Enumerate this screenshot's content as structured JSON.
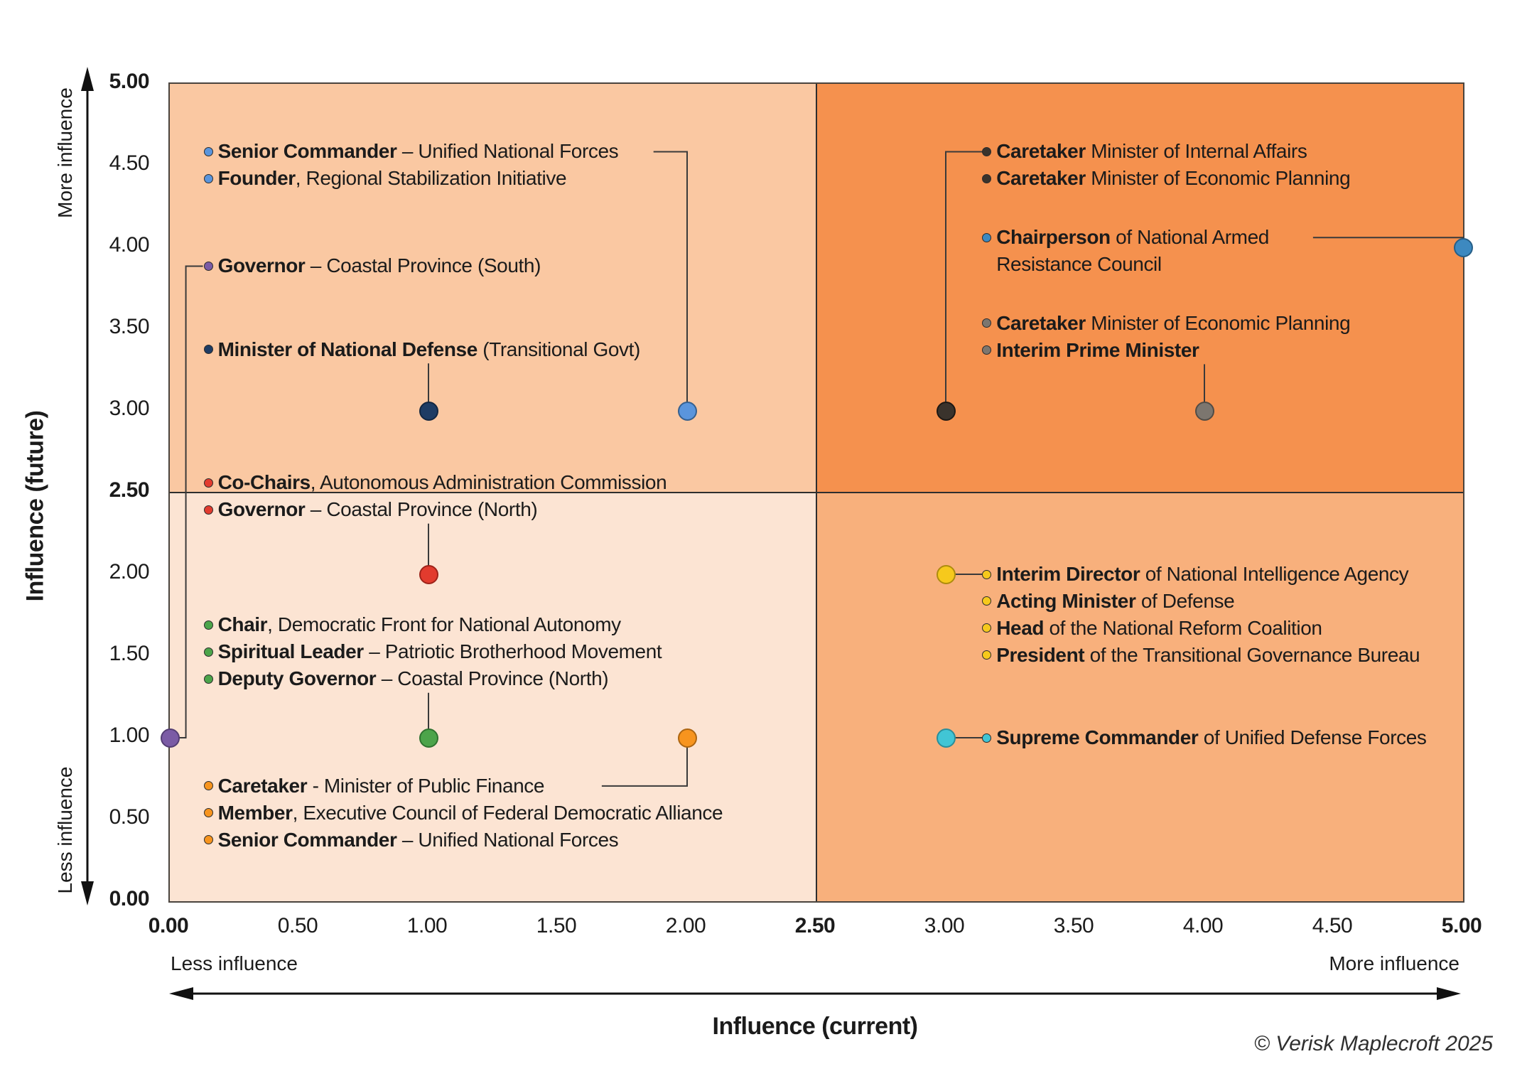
{
  "figure": {
    "x_axis_title": "Influence (current)",
    "y_axis_title": "Influence (future)",
    "x_less_label": "Less influence",
    "x_more_label": "More influence",
    "y_less_label": "Less influence",
    "y_more_label": "More influence",
    "copyright": "© Verisk Maplecroft 2025"
  },
  "chart_data": {
    "type": "scatter",
    "xlabel": "Influence (current)",
    "ylabel": "Influence (future)",
    "xlim": [
      0,
      5
    ],
    "ylim": [
      0,
      5
    ],
    "grid": false,
    "quadrant_split": {
      "x": 2.5,
      "y": 2.5
    },
    "quadrant_colors": {
      "top_left": "#FAC8A2",
      "top_right": "#F5914E",
      "bottom_left": "#FCE4D3",
      "bottom_right": "#F8B07C"
    },
    "x_ticks": [
      {
        "v": 0.0,
        "label": "0.00",
        "bold": true
      },
      {
        "v": 0.5,
        "label": "0.50",
        "bold": false
      },
      {
        "v": 1.0,
        "label": "1.00",
        "bold": false
      },
      {
        "v": 1.5,
        "label": "1.50",
        "bold": false
      },
      {
        "v": 2.0,
        "label": "2.00",
        "bold": false
      },
      {
        "v": 2.5,
        "label": "2.50",
        "bold": true
      },
      {
        "v": 3.0,
        "label": "3.00",
        "bold": false
      },
      {
        "v": 3.5,
        "label": "3.50",
        "bold": false
      },
      {
        "v": 4.0,
        "label": "4.00",
        "bold": false
      },
      {
        "v": 4.5,
        "label": "4.50",
        "bold": false
      },
      {
        "v": 5.0,
        "label": "5.00",
        "bold": true
      }
    ],
    "y_ticks": [
      {
        "v": 5.0,
        "label": "5.00",
        "bold": true
      },
      {
        "v": 4.5,
        "label": "4.50",
        "bold": false
      },
      {
        "v": 4.0,
        "label": "4.00",
        "bold": false
      },
      {
        "v": 3.5,
        "label": "3.50",
        "bold": false
      },
      {
        "v": 3.0,
        "label": "3.00",
        "bold": false
      },
      {
        "v": 2.5,
        "label": "2.50",
        "bold": true
      },
      {
        "v": 2.0,
        "label": "2.00",
        "bold": false
      },
      {
        "v": 1.5,
        "label": "1.50",
        "bold": false
      },
      {
        "v": 1.0,
        "label": "1.00",
        "bold": false
      },
      {
        "v": 0.5,
        "label": "0.50",
        "bold": false
      },
      {
        "v": 0.0,
        "label": "0.00",
        "bold": true
      }
    ],
    "points": [
      {
        "name": "senior-commander-founder-point",
        "x": 2,
        "y": 3,
        "color": "#5A95DC",
        "border": "#35608F"
      },
      {
        "name": "governor-south-point",
        "x": 0,
        "y": 1,
        "color": "#7B5BA5",
        "border": "#543E74"
      },
      {
        "name": "minister-national-defense-point",
        "x": 1,
        "y": 3,
        "color": "#1E3C64",
        "border": "#132741"
      },
      {
        "name": "co-chairs-governor-north-point",
        "x": 1,
        "y": 2,
        "color": "#E23B2E",
        "border": "#9E231A"
      },
      {
        "name": "chair-spiritual-deputy-point",
        "x": 1,
        "y": 1,
        "color": "#4CA44A",
        "border": "#2F7330"
      },
      {
        "name": "caretaker-finance-member-commander-point",
        "x": 2,
        "y": 1,
        "color": "#F7941E",
        "border": "#AD6612"
      },
      {
        "name": "caretaker-internal-economic-point",
        "x": 3,
        "y": 3,
        "color": "#3A332C",
        "border": "#1D1814"
      },
      {
        "name": "caretaker-economic-interim-pm-point",
        "x": 4,
        "y": 3,
        "color": "#7C766F",
        "border": "#514C46"
      },
      {
        "name": "chairperson-resistance-council-point",
        "x": 5,
        "y": 4,
        "color": "#3D89C0",
        "border": "#275F87"
      },
      {
        "name": "interim-director-cluster-point",
        "x": 3,
        "y": 2,
        "color": "#F6C91C",
        "border": "#AD8C0E"
      },
      {
        "name": "supreme-commander-point",
        "x": 3,
        "y": 1,
        "color": "#41C5D5",
        "border": "#2B8D99"
      }
    ],
    "label_groups": [
      {
        "id": "senior-commander-founder",
        "color": "#5A95DC",
        "bullet_x": 0.15,
        "lines": [
          {
            "y": 4.585,
            "bold": "Senior Commander",
            "rest": " – Unified National Forces"
          },
          {
            "y": 4.42,
            "bold": "Founder",
            "rest": ", Regional Stabilization Initiative"
          }
        ],
        "connector": [
          [
            1.87,
            4.585
          ],
          [
            2.0,
            4.585
          ],
          [
            2.0,
            3.0
          ]
        ]
      },
      {
        "id": "governor-south",
        "color": "#7B5BA5",
        "bullet_x": 0.15,
        "lines": [
          {
            "y": 3.885,
            "bold": "Governor",
            "rest": " – Coastal Province (South)"
          }
        ],
        "connector": [
          [
            0.128,
            3.885
          ],
          [
            0.062,
            3.885
          ],
          [
            0.062,
            1.0
          ],
          [
            0.0,
            1.0
          ]
        ]
      },
      {
        "id": "minister-national-defense",
        "color": "#1E3C64",
        "bullet_x": 0.15,
        "lines": [
          {
            "y": 3.375,
            "bold": "Minister of National Defense",
            "rest": " (Transitional Govt)"
          }
        ],
        "connector": [
          [
            1.0,
            3.29
          ],
          [
            1.0,
            3.0
          ]
        ]
      },
      {
        "id": "co-chairs-governor-north",
        "color": "#E23B2E",
        "bullet_x": 0.15,
        "lines": [
          {
            "y": 2.56,
            "bold": "Co-Chairs",
            "rest": ", Autonomous Administration Commission"
          },
          {
            "y": 2.395,
            "bold": "Governor",
            "rest": " – Coastal Province (North)"
          }
        ],
        "connector": [
          [
            1.0,
            2.31
          ],
          [
            1.0,
            2.0
          ]
        ]
      },
      {
        "id": "chair-spiritual-deputy",
        "color": "#4CA44A",
        "bullet_x": 0.15,
        "lines": [
          {
            "y": 1.69,
            "bold": "Chair",
            "rest": ", Democratic Front for National Autonomy"
          },
          {
            "y": 1.525,
            "bold": "Spiritual Leader",
            "rest": " – Patriotic Brotherhood Movement"
          },
          {
            "y": 1.36,
            "bold": "Deputy Governor",
            "rest": " – Coastal Province (North)"
          }
        ],
        "connector": [
          [
            1.0,
            1.275
          ],
          [
            1.0,
            1.0
          ]
        ]
      },
      {
        "id": "caretaker-finance-member-commander",
        "color": "#F7941E",
        "bullet_x": 0.15,
        "lines": [
          {
            "y": 0.705,
            "bold": "Caretaker",
            "rest": " - Minister of Public Finance"
          },
          {
            "y": 0.54,
            "bold": "Member",
            "rest": ", Executive Council of Federal Democratic Alliance"
          },
          {
            "y": 0.375,
            "bold": "Senior Commander",
            "rest": " – Unified National Forces"
          }
        ],
        "connector": [
          [
            1.67,
            0.705
          ],
          [
            2.0,
            0.705
          ],
          [
            2.0,
            1.0
          ]
        ]
      },
      {
        "id": "caretaker-internal-economic",
        "color": "#3A332C",
        "bullet_x": 3.16,
        "lines": [
          {
            "y": 4.585,
            "bold": "Caretaker",
            "rest": " Minister of Internal Affairs"
          },
          {
            "y": 4.42,
            "bold": "Caretaker",
            "rest": " Minister of Economic Planning"
          }
        ],
        "connector": [
          [
            3.142,
            4.585
          ],
          [
            3.0,
            4.585
          ],
          [
            3.0,
            3.0
          ]
        ]
      },
      {
        "id": "chairperson-resistance-council",
        "color": "#3D89C0",
        "bullet_x": 3.16,
        "lines": [
          {
            "y": 4.06,
            "bold": "Chairperson",
            "rest": " of National Armed"
          },
          {
            "y": 3.895,
            "bold": "",
            "rest": "Resistance Council",
            "no_bullet": true
          }
        ],
        "connector": [
          [
            4.42,
            4.06
          ],
          [
            5.0,
            4.06
          ],
          [
            5.0,
            4.0
          ]
        ]
      },
      {
        "id": "caretaker-economic-interim-pm",
        "color": "#7C766F",
        "bullet_x": 3.16,
        "lines": [
          {
            "y": 3.535,
            "bold": "Caretaker",
            "rest": " Minister of Economic Planning"
          },
          {
            "y": 3.37,
            "bold": "Interim Prime Minister",
            "rest": ""
          }
        ],
        "connector": [
          [
            4.0,
            3.285
          ],
          [
            4.0,
            3.0
          ]
        ]
      },
      {
        "id": "interim-director-cluster",
        "color": "#F6C91C",
        "bullet_x": 3.16,
        "lines": [
          {
            "y": 2.0,
            "bold": "Interim Director",
            "rest": " of National Intelligence Agency"
          },
          {
            "y": 1.835,
            "bold": "Acting Minister",
            "rest": " of Defense"
          },
          {
            "y": 1.67,
            "bold": "Head",
            "rest": " of the National Reform Coalition"
          },
          {
            "y": 1.505,
            "bold": "President",
            "rest": " of the Transitional Governance Bureau"
          }
        ],
        "connector": [
          [
            3.0,
            2.0
          ],
          [
            3.142,
            2.0
          ]
        ]
      },
      {
        "id": "supreme-commander",
        "color": "#41C5D5",
        "bullet_x": 3.16,
        "lines": [
          {
            "y": 1.0,
            "bold": "Supreme Commander",
            "rest": " of Unified Defense Forces"
          }
        ],
        "connector": [
          [
            3.0,
            1.0
          ],
          [
            3.142,
            1.0
          ]
        ]
      }
    ]
  }
}
